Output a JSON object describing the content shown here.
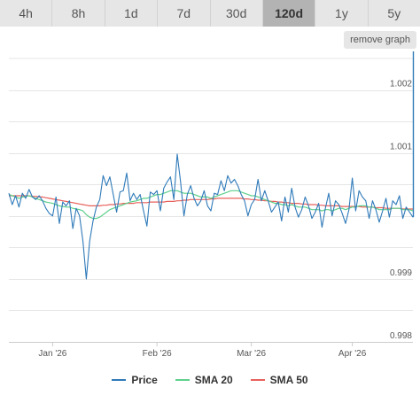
{
  "tabs": [
    {
      "label": "4h"
    },
    {
      "label": "8h"
    },
    {
      "label": "1d"
    },
    {
      "label": "7d"
    },
    {
      "label": "30d"
    },
    {
      "label": "120d",
      "active": true
    },
    {
      "label": "1y"
    },
    {
      "label": "5y"
    }
  ],
  "remove_graph_label": "remove graph",
  "colors": {
    "price": "#2f7ab9",
    "sma20": "#5fd08c",
    "sma50": "#e8615b",
    "grid": "#e6e6e6",
    "tab_bg": "#e6e6e6",
    "tab_active_bg": "#b3b3b3"
  },
  "chart_data": {
    "type": "line",
    "title": "",
    "xlabel": "",
    "ylabel": "",
    "ylim": [
      0.998,
      1.0025
    ],
    "y_ticks": [
      "1.002",
      "1.001",
      "0.999",
      "0.998"
    ],
    "y_tick_values": [
      1.002,
      1.001,
      0.999,
      0.998
    ],
    "x_ticks": [
      "Jan '26",
      "Feb '26",
      "Mar '26",
      "Apr '26"
    ],
    "x_tick_positions": [
      13,
      44,
      72,
      102
    ],
    "x_count": 121,
    "grid": true,
    "legend": "bottom",
    "series": [
      {
        "name": "Price",
        "values": [
          1.00036,
          1.00018,
          1.00032,
          1.00014,
          1.00036,
          1.00028,
          1.00042,
          1.0003,
          1.00026,
          1.00032,
          1.00024,
          1.00012,
          1.00004,
          1.0,
          1.0003,
          0.99988,
          1.00022,
          1.00016,
          1.00024,
          0.9998,
          1.00012,
          1.0,
          0.9996,
          0.999,
          0.9996,
          0.99992,
          1.00014,
          1.00026,
          1.00064,
          1.00048,
          1.00062,
          1.00034,
          1.00006,
          1.00038,
          1.0004,
          1.00068,
          1.00024,
          1.00036,
          1.00026,
          1.00034,
          1.00008,
          0.99984,
          1.00038,
          1.00034,
          1.0004,
          1.00008,
          1.00044,
          1.00054,
          1.00062,
          1.00026,
          1.00098,
          1.00054,
          1.0,
          1.00034,
          1.00048,
          1.00028,
          1.00016,
          1.00024,
          1.0004,
          1.00016,
          1.00008,
          1.00036,
          1.00034,
          1.00056,
          1.0004,
          1.00064,
          1.00052,
          1.00058,
          1.00048,
          1.00034,
          1.00024,
          1.0,
          1.00018,
          1.00026,
          1.00058,
          1.00024,
          1.0004,
          1.00024,
          1.00006,
          1.00014,
          1.00022,
          0.99992,
          1.0003,
          1.00006,
          1.00044,
          1.00014,
          0.99998,
          1.0001,
          1.0003,
          1.00016,
          0.99996,
          1.00006,
          1.0002,
          0.99982,
          1.00012,
          1.00036,
          1.0,
          1.00024,
          1.00018,
          1.00004,
          0.99988,
          1.0001,
          1.0006,
          1.00008,
          1.0004,
          1.0003,
          1.00024,
          0.99996,
          1.00024,
          1.0001,
          0.9999,
          1.00008,
          1.00028,
          0.99998,
          1.00024,
          1.00018,
          1.00032,
          0.99996,
          1.00014,
          1.00006,
          0.99998
        ]
      },
      {
        "name": "SMA 20",
        "values": [
          1.00034,
          1.00032,
          1.0003,
          1.00028,
          1.0003,
          1.00031,
          1.00032,
          1.0003,
          1.00028,
          1.00026,
          1.00024,
          1.00022,
          1.00021,
          1.0002,
          1.00018,
          1.00016,
          1.00015,
          1.00014,
          1.00014,
          1.00012,
          1.00011,
          1.0001,
          1.00008,
          1.00002,
          0.99998,
          0.99996,
          0.99996,
          0.99998,
          1.00002,
          1.00006,
          1.0001,
          1.00012,
          1.00014,
          1.00016,
          1.00018,
          1.0002,
          1.00022,
          1.00023,
          1.00024,
          1.00026,
          1.00028,
          1.00028,
          1.0003,
          1.00032,
          1.00034,
          1.00034,
          1.00036,
          1.00038,
          1.0004,
          1.0004,
          1.0004,
          1.00038,
          1.00036,
          1.00036,
          1.00036,
          1.00034,
          1.00032,
          1.0003,
          1.0003,
          1.0003,
          1.00028,
          1.0003,
          1.00032,
          1.00034,
          1.00036,
          1.00038,
          1.0004,
          1.0004,
          1.0004,
          1.00038,
          1.00036,
          1.00034,
          1.00032,
          1.00032,
          1.0003,
          1.00028,
          1.00026,
          1.00024,
          1.00022,
          1.0002,
          1.0002,
          1.00018,
          1.00018,
          1.00016,
          1.00018,
          1.00016,
          1.00014,
          1.00014,
          1.00014,
          1.00012,
          1.0001,
          1.0001,
          1.0001,
          1.00008,
          1.0001,
          1.0001,
          1.00008,
          1.0001,
          1.00012,
          1.00012,
          1.0001,
          1.00012,
          1.00014,
          1.00014,
          1.00016,
          1.00016,
          1.00016,
          1.00014,
          1.00014,
          1.00012,
          1.0001,
          1.0001,
          1.0001,
          1.0001,
          1.00012,
          1.00012,
          1.00012,
          1.0001,
          1.0001,
          1.0001,
          1.00008
        ]
      },
      {
        "name": "SMA 50",
        "values": [
          1.00032,
          1.00032,
          1.00032,
          1.00032,
          1.00032,
          1.00032,
          1.00032,
          1.00031,
          1.00031,
          1.0003,
          1.0003,
          1.00029,
          1.00028,
          1.00027,
          1.00026,
          1.00025,
          1.00024,
          1.00023,
          1.00022,
          1.00021,
          1.0002,
          1.00019,
          1.00018,
          1.00017,
          1.00016,
          1.00016,
          1.00016,
          1.00016,
          1.00017,
          1.00017,
          1.00018,
          1.00018,
          1.00019,
          1.00019,
          1.0002,
          1.0002,
          1.0002,
          1.0002,
          1.00021,
          1.00021,
          1.00021,
          1.00021,
          1.00022,
          1.00022,
          1.00022,
          1.00022,
          1.00022,
          1.00023,
          1.00023,
          1.00023,
          1.00024,
          1.00024,
          1.00025,
          1.00025,
          1.00026,
          1.00026,
          1.00026,
          1.00026,
          1.00026,
          1.00026,
          1.00027,
          1.00027,
          1.00028,
          1.00028,
          1.00028,
          1.00028,
          1.00028,
          1.00028,
          1.00028,
          1.00028,
          1.00027,
          1.00027,
          1.00026,
          1.00026,
          1.00025,
          1.00025,
          1.00024,
          1.00024,
          1.00023,
          1.00023,
          1.00022,
          1.00022,
          1.00021,
          1.00021,
          1.0002,
          1.0002,
          1.0002,
          1.00019,
          1.00019,
          1.00018,
          1.00018,
          1.00018,
          1.00017,
          1.00017,
          1.00016,
          1.00016,
          1.00016,
          1.00016,
          1.00016,
          1.00015,
          1.00015,
          1.00015,
          1.00015,
          1.00015,
          1.00015,
          1.00014,
          1.00014,
          1.00014,
          1.00014,
          1.00013,
          1.00013,
          1.00013,
          1.00012,
          1.00012,
          1.00012,
          1.00012,
          1.00012,
          1.00011,
          1.00011,
          1.00011,
          1.00011
        ]
      }
    ]
  },
  "legend_items": [
    {
      "label": "Price",
      "color": "#2f7ab9"
    },
    {
      "label": "SMA 20",
      "color": "#5fd08c"
    },
    {
      "label": "SMA 50",
      "color": "#e8615b"
    }
  ]
}
